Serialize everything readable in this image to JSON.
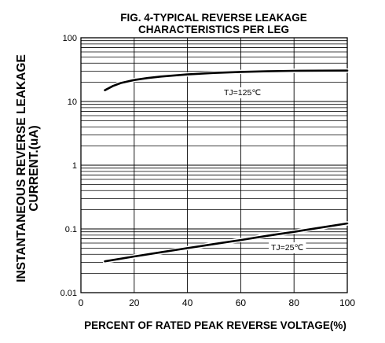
{
  "chart_data": {
    "type": "line",
    "title": "FIG. 4-TYPICAL REVERSE LEAKAGE\nCHARACTERISTICS PER LEG",
    "xlabel": "PERCENT OF RATED PEAK REVERSE VOLTAGE(%)",
    "ylabel": "INSTANTANEOUS REVERSE LEAKAGE\nCURRENT.(uA)",
    "x_scale": "linear",
    "y_scale": "log",
    "xlim": [
      0,
      100
    ],
    "ylim": [
      0.01,
      100
    ],
    "x_ticks": [
      0,
      20,
      40,
      60,
      80,
      100
    ],
    "x_tick_labels": [
      "0",
      "20",
      "40",
      "60",
      "80",
      "100"
    ],
    "y_ticks": [
      0.01,
      0.1,
      1,
      10,
      100
    ],
    "y_tick_labels": [
      "0.01",
      "0.1",
      "1",
      "10",
      "100"
    ],
    "grid": true,
    "series": [
      {
        "name": "TJ=125℃",
        "x": [
          9,
          12,
          15,
          20,
          25,
          30,
          40,
          50,
          60,
          70,
          80,
          90,
          100
        ],
        "y": [
          15,
          17.5,
          19.5,
          21.7,
          23.3,
          24.6,
          26.6,
          28.1,
          29.1,
          29.8,
          30.3,
          30.5,
          30.6
        ]
      },
      {
        "name": "TJ=25℃",
        "x": [
          9,
          20,
          30,
          40,
          50,
          60,
          70,
          80,
          90,
          100
        ],
        "y": [
          0.031,
          0.037,
          0.043,
          0.05,
          0.058,
          0.067,
          0.078,
          0.09,
          0.105,
          0.122
        ]
      }
    ]
  }
}
